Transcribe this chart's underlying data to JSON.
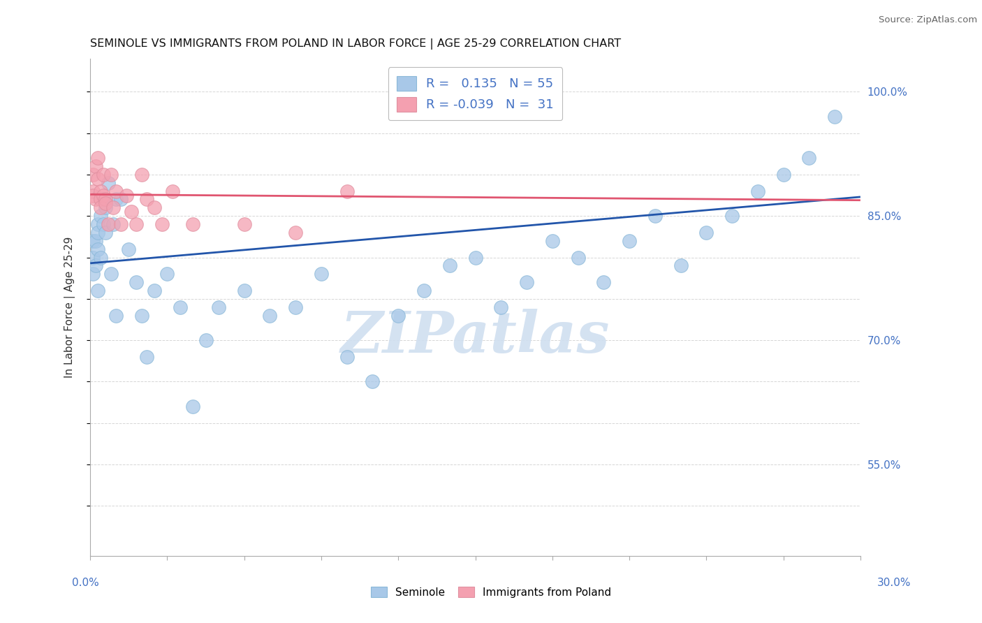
{
  "title": "SEMINOLE VS IMMIGRANTS FROM POLAND IN LABOR FORCE | AGE 25-29 CORRELATION CHART",
  "source": "Source: ZipAtlas.com",
  "ylabel": "In Labor Force | Age 25-29",
  "xlim": [
    0.0,
    0.3
  ],
  "ylim": [
    0.44,
    1.04
  ],
  "seminole_R": 0.135,
  "seminole_N": 55,
  "poland_R": -0.039,
  "poland_N": 31,
  "blue_color": "#A8C8E8",
  "pink_color": "#F4A0B0",
  "blue_line_color": "#2255AA",
  "pink_line_color": "#E05570",
  "axis_color": "#4472C4",
  "watermark_color": "#D0DFF0",
  "background_color": "#FFFFFF",
  "grid_color": "#CCCCCC",
  "right_ytick_vals": [
    0.55,
    0.7,
    0.85,
    1.0
  ],
  "right_ytick_labels": [
    "55.0%",
    "70.0%",
    "85.0%",
    "100.0%"
  ],
  "seminole_x": [
    0.001,
    0.001,
    0.001,
    0.002,
    0.002,
    0.003,
    0.003,
    0.003,
    0.003,
    0.004,
    0.004,
    0.005,
    0.005,
    0.006,
    0.006,
    0.007,
    0.008,
    0.009,
    0.01,
    0.01,
    0.012,
    0.015,
    0.018,
    0.02,
    0.022,
    0.025,
    0.03,
    0.035,
    0.04,
    0.045,
    0.05,
    0.06,
    0.07,
    0.08,
    0.09,
    0.1,
    0.11,
    0.12,
    0.13,
    0.14,
    0.15,
    0.16,
    0.17,
    0.18,
    0.19,
    0.2,
    0.21,
    0.22,
    0.23,
    0.24,
    0.25,
    0.26,
    0.27,
    0.28,
    0.29
  ],
  "seminole_y": [
    0.8,
    0.78,
    0.82,
    0.82,
    0.79,
    0.84,
    0.81,
    0.83,
    0.76,
    0.85,
    0.8,
    0.87,
    0.84,
    0.86,
    0.83,
    0.89,
    0.78,
    0.84,
    0.73,
    0.87,
    0.87,
    0.81,
    0.77,
    0.73,
    0.68,
    0.76,
    0.78,
    0.74,
    0.62,
    0.7,
    0.74,
    0.76,
    0.73,
    0.74,
    0.78,
    0.68,
    0.65,
    0.73,
    0.76,
    0.79,
    0.8,
    0.74,
    0.77,
    0.82,
    0.8,
    0.77,
    0.82,
    0.85,
    0.79,
    0.83,
    0.85,
    0.88,
    0.9,
    0.92,
    0.97
  ],
  "poland_x": [
    0.001,
    0.001,
    0.001,
    0.002,
    0.002,
    0.003,
    0.003,
    0.004,
    0.004,
    0.004,
    0.005,
    0.005,
    0.006,
    0.006,
    0.007,
    0.008,
    0.009,
    0.01,
    0.012,
    0.014,
    0.016,
    0.018,
    0.02,
    0.022,
    0.025,
    0.028,
    0.032,
    0.04,
    0.06,
    0.08,
    0.1
  ],
  "poland_y": [
    0.9,
    0.88,
    0.875,
    0.91,
    0.87,
    0.92,
    0.895,
    0.88,
    0.87,
    0.86,
    0.9,
    0.875,
    0.87,
    0.865,
    0.84,
    0.9,
    0.86,
    0.88,
    0.84,
    0.875,
    0.855,
    0.84,
    0.9,
    0.87,
    0.86,
    0.84,
    0.88,
    0.84,
    0.84,
    0.83,
    0.88
  ],
  "blue_trend_x0": 0.0,
  "blue_trend_y0": 0.793,
  "blue_trend_x1": 0.3,
  "blue_trend_y1": 0.873,
  "pink_trend_x0": 0.0,
  "pink_trend_y0": 0.876,
  "pink_trend_x1": 0.3,
  "pink_trend_y1": 0.869
}
